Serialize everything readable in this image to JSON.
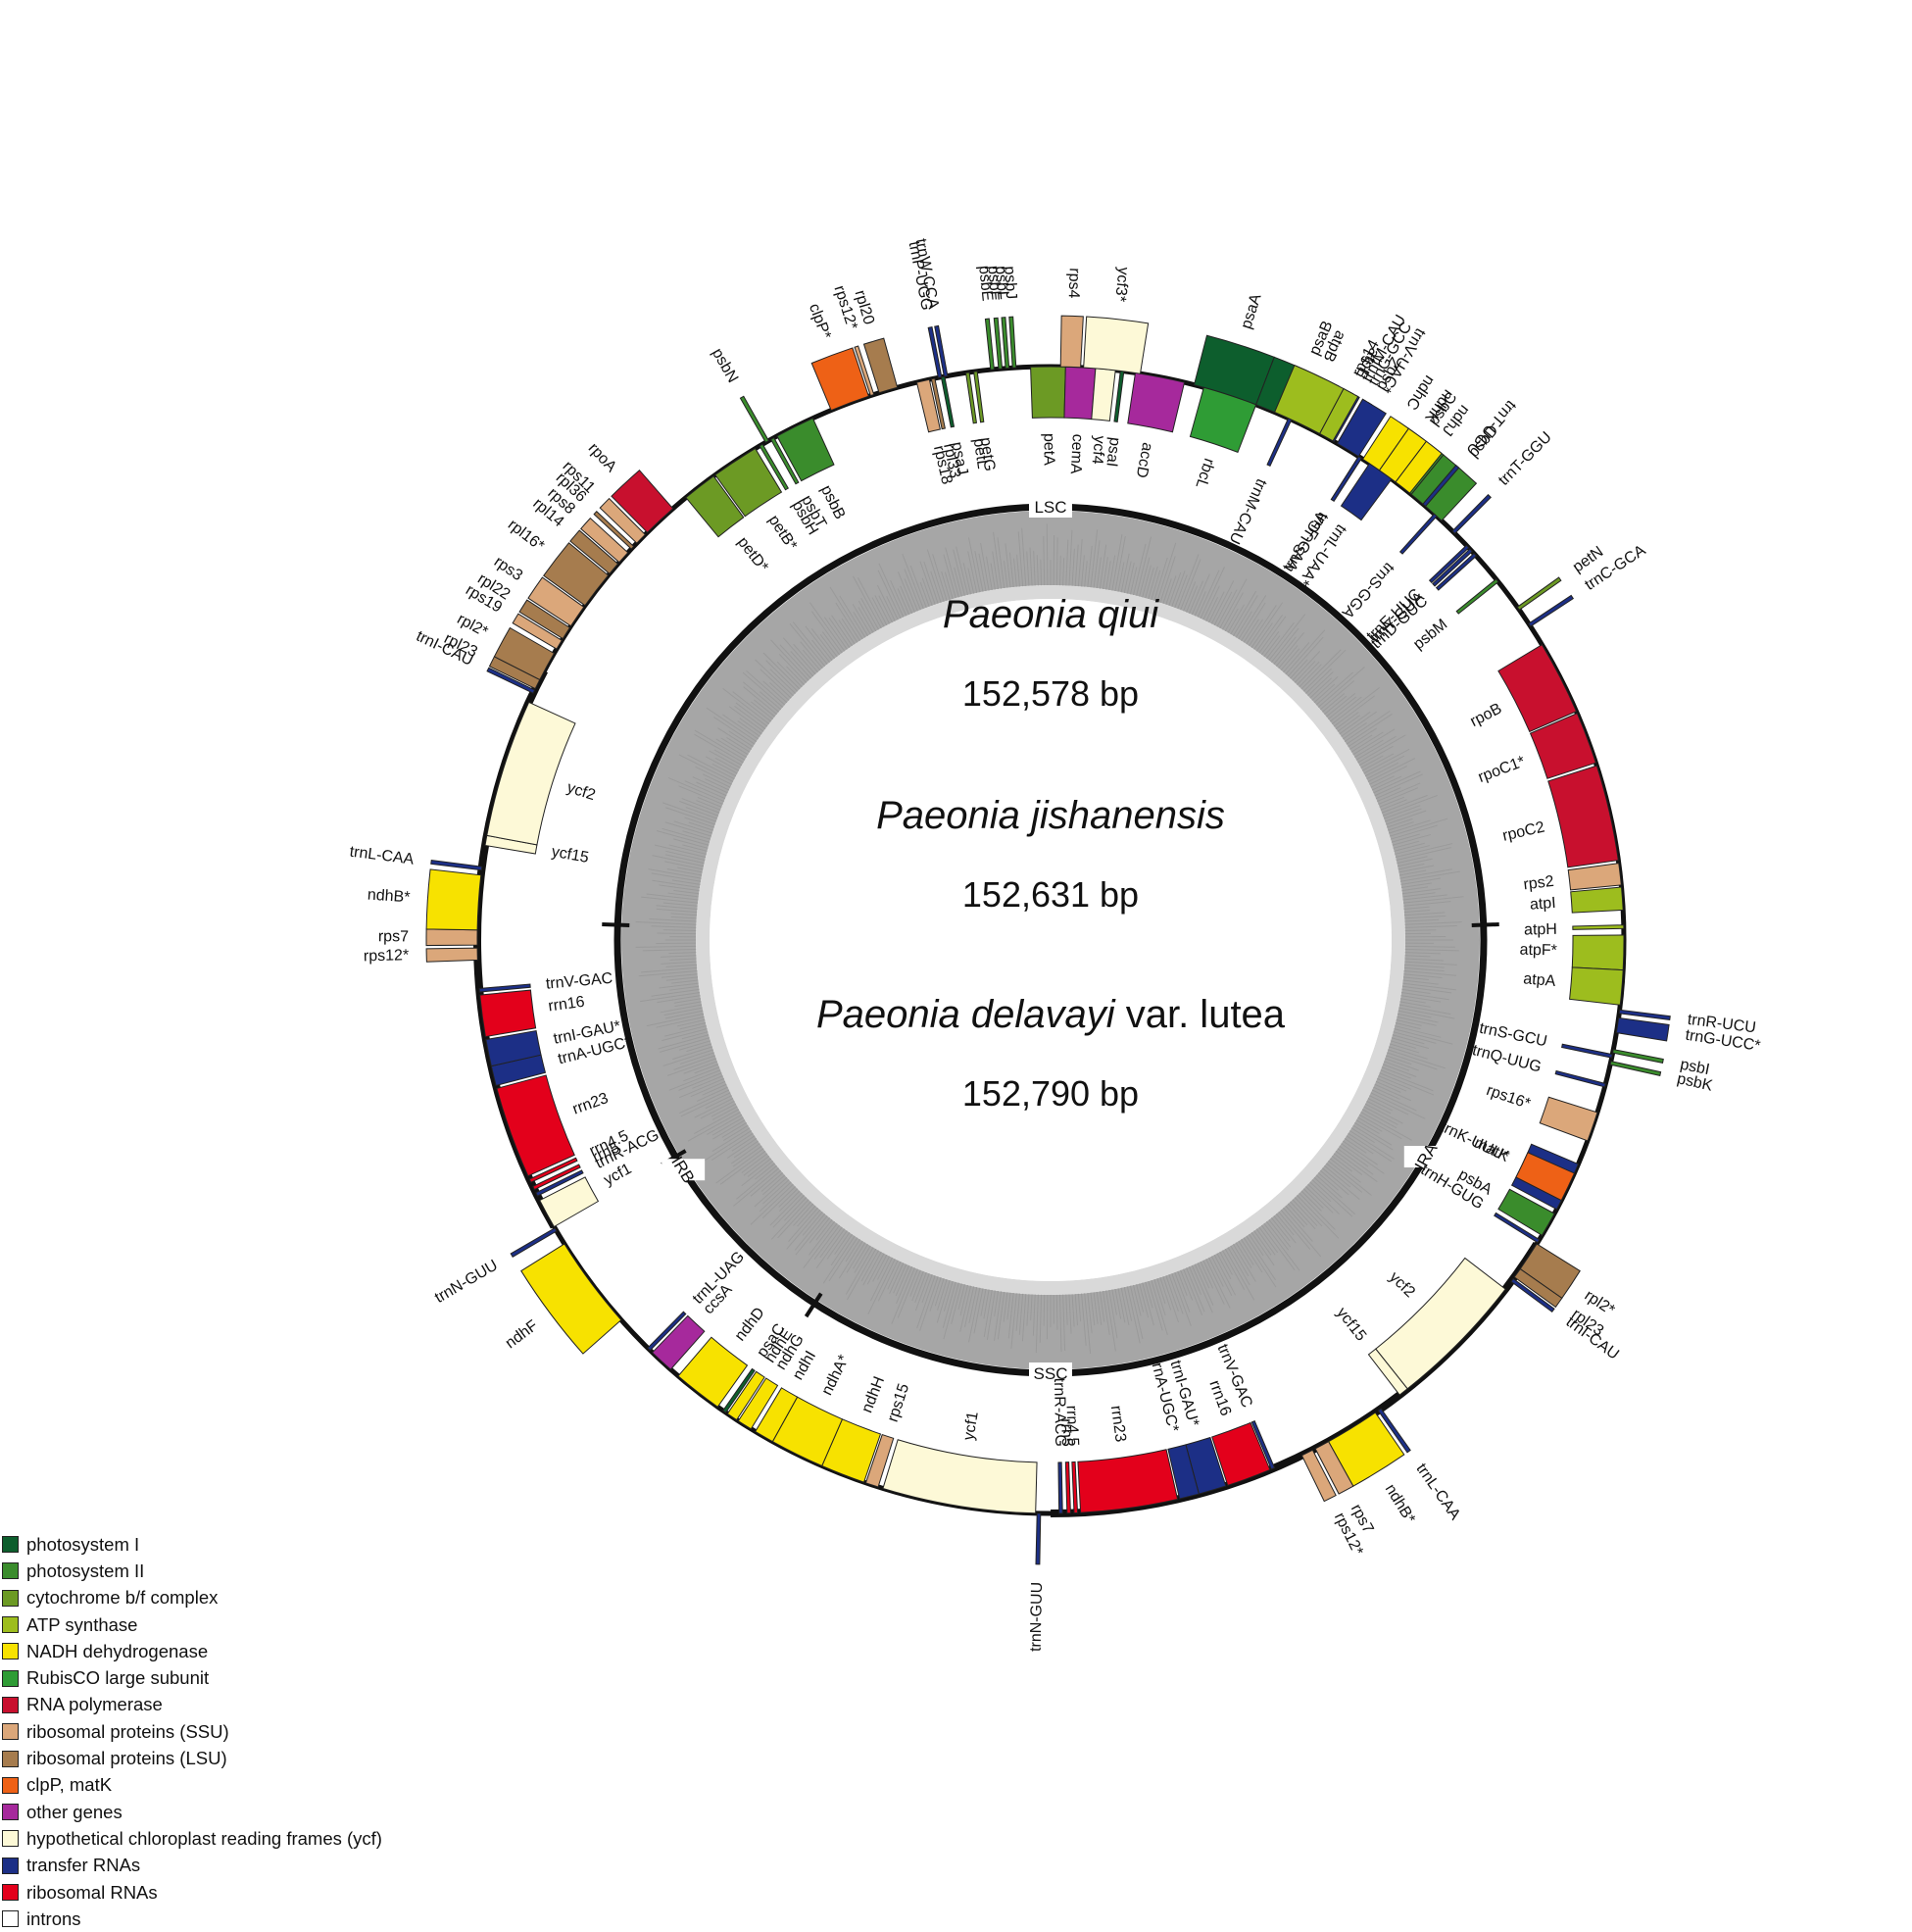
{
  "title": {
    "species": [
      {
        "name": "Paeonia qiui",
        "size": "152,578 bp"
      },
      {
        "name": "Paeonia jishanensis",
        "size": "152,631 bp"
      },
      {
        "name_italic": "Paeonia delavayi",
        "name_plain": " var. lutea",
        "size": "152,790 bp"
      }
    ]
  },
  "regions": [
    "LSC",
    "IRA",
    "SSC",
    "IRB"
  ],
  "legend": [
    {
      "label": "photosystem I",
      "color": "#0d5e2d"
    },
    {
      "label": "photosystem II",
      "color": "#3a8c2c"
    },
    {
      "label": "cytochrome b/f complex",
      "color": "#6c9a24"
    },
    {
      "label": "ATP synthase",
      "color": "#9dbd1e"
    },
    {
      "label": "NADH dehydrogenase",
      "color": "#f7e200"
    },
    {
      "label": "RubisCO large subunit",
      "color": "#2f9c35"
    },
    {
      "label": "RNA polymerase",
      "color": "#c8102e"
    },
    {
      "label": "ribosomal proteins (SSU)",
      "color": "#dba77a"
    },
    {
      "label": "ribosomal proteins (LSU)",
      "color": "#a67c4e"
    },
    {
      "label": "clpP, matK",
      "color": "#ee6116"
    },
    {
      "label": "other genes",
      "color": "#a6299c"
    },
    {
      "label": "hypothetical chloroplast reading frames (ycf)",
      "color": "#fdf9d7"
    },
    {
      "label": "transfer RNAs",
      "color": "#1c2f86"
    },
    {
      "label": "ribosomal RNAs",
      "color": "#e3001b"
    },
    {
      "label": "introns",
      "color": "#ffffff"
    }
  ],
  "genes": [
    {
      "name": "psaA",
      "cat": 0,
      "out": true,
      "a1": 14.5,
      "a2": 21.0
    },
    {
      "name": "psaB",
      "cat": 0,
      "out": true,
      "a1": 21.0,
      "a2": 27.5
    },
    {
      "name": "rps14",
      "cat": 7,
      "out": true,
      "a1": 28.0,
      "a2": 29.0
    },
    {
      "name": "trnfM-CAU",
      "cat": 12,
      "out": true,
      "a1": 29.3,
      "a2": 29.6
    },
    {
      "name": "trnS-UGA",
      "cat": 12,
      "out": false,
      "a1": 32.5,
      "a2": 32.8
    },
    {
      "name": "trnG-GCC",
      "cat": 12,
      "out": true,
      "a1": 30.0,
      "a2": 30.3
    },
    {
      "name": "psbZ",
      "cat": 1,
      "out": true,
      "a1": 30.6,
      "a2": 31.2
    },
    {
      "name": "psbC",
      "cat": 1,
      "out": true,
      "a1": 34.0,
      "a2": 39.0
    },
    {
      "name": "psbD",
      "cat": 1,
      "out": true,
      "a1": 39.0,
      "a2": 43.0
    },
    {
      "name": "trnT-GGU",
      "cat": 12,
      "out": true,
      "a1": 44.5,
      "a2": 44.8
    },
    {
      "name": "trnE-UUC",
      "cat": 12,
      "out": false,
      "a1": 46.5,
      "a2": 46.8
    },
    {
      "name": "trnY-GUA",
      "cat": 12,
      "out": false,
      "a1": 47.0,
      "a2": 47.3
    },
    {
      "name": "trnD-GUC",
      "cat": 12,
      "out": false,
      "a1": 47.6,
      "a2": 47.9
    },
    {
      "name": "psbM",
      "cat": 1,
      "out": false,
      "a1": 51.0,
      "a2": 51.5
    },
    {
      "name": "petN",
      "cat": 2,
      "out": true,
      "a1": 54.5,
      "a2": 55.0
    },
    {
      "name": "trnC-GCA",
      "cat": 12,
      "out": true,
      "a1": 56.5,
      "a2": 56.8
    },
    {
      "name": "rpoB",
      "cat": 6,
      "out": false,
      "a1": 59.0,
      "a2": 66.5
    },
    {
      "name": "rpoC1*",
      "cat": 6,
      "out": false,
      "a1": 66.7,
      "a2": 72.0
    },
    {
      "name": "rpoC2",
      "cat": 6,
      "out": false,
      "a1": 72.3,
      "a2": 82.0
    },
    {
      "name": "rps2",
      "cat": 7,
      "out": false,
      "a1": 82.3,
      "a2": 84.5
    },
    {
      "name": "atpI",
      "cat": 3,
      "out": false,
      "a1": 84.7,
      "a2": 87.0
    },
    {
      "name": "atpH",
      "cat": 3,
      "out": false,
      "a1": 88.5,
      "a2": 89.2
    },
    {
      "name": "atpF*",
      "cat": 3,
      "out": false,
      "a1": 89.5,
      "a2": 93.0
    },
    {
      "name": "atpA",
      "cat": 3,
      "out": false,
      "a1": 93.0,
      "a2": 96.5
    },
    {
      "name": "trnR-UCU",
      "cat": 12,
      "out": true,
      "a1": 97.0,
      "a2": 97.3
    },
    {
      "name": "trnG-UCC*",
      "cat": 12,
      "out": true,
      "a1": 97.8,
      "a2": 99.3
    },
    {
      "name": "trnS-GCU",
      "cat": 12,
      "out": false,
      "a1": 101.5,
      "a2": 101.8
    },
    {
      "name": "psbI",
      "cat": 1,
      "out": true,
      "a1": 101.0,
      "a2": 101.4
    },
    {
      "name": "psbK",
      "cat": 1,
      "out": true,
      "a1": 102.2,
      "a2": 102.8
    },
    {
      "name": "trnQ-UUG",
      "cat": 12,
      "out": false,
      "a1": 104.5,
      "a2": 104.8
    },
    {
      "name": "rps16*",
      "cat": 7,
      "out": false,
      "a1": 107.5,
      "a2": 110.5
    },
    {
      "name": "trnK-UUU*",
      "cat": 12,
      "out": false,
      "a1": 113.0,
      "a2": 118.0
    },
    {
      "name": "matK",
      "cat": 9,
      "out": false,
      "a1": 114.0,
      "a2": 117.0
    },
    {
      "name": "psbA",
      "cat": 1,
      "out": false,
      "a1": 118.5,
      "a2": 121.0
    },
    {
      "name": "trnH-GUG",
      "cat": 12,
      "out": false,
      "a1": 121.5,
      "a2": 121.8
    },
    {
      "name": "rpl2*",
      "cat": 8,
      "out": true,
      "a1": 122.0,
      "a2": 125.0
    },
    {
      "name": "rpl23",
      "cat": 8,
      "out": true,
      "a1": 125.0,
      "a2": 126.0
    },
    {
      "name": "trnI-CAU",
      "cat": 12,
      "out": true,
      "a1": 126.2,
      "a2": 126.5
    },
    {
      "name": "ycf2",
      "cat": 11,
      "out": false,
      "a1": 127.5,
      "a2": 141.5
    },
    {
      "name": "ycf15",
      "cat": 11,
      "out": false,
      "a1": 141.5,
      "a2": 142.5
    },
    {
      "name": "trnL-CAA",
      "cat": 12,
      "out": true,
      "a1": 144.8,
      "a2": 145.1
    },
    {
      "name": "ndhB*",
      "cat": 4,
      "out": true,
      "a1": 145.5,
      "a2": 151.0
    },
    {
      "name": "rps7",
      "cat": 7,
      "out": true,
      "a1": 151.0,
      "a2": 152.5
    },
    {
      "name": "rps12*",
      "cat": 7,
      "out": true,
      "a1": 152.8,
      "a2": 154.0
    },
    {
      "name": "trnV-GAC",
      "cat": 12,
      "out": false,
      "a1": 157.0,
      "a2": 157.3
    },
    {
      "name": "rrn16",
      "cat": 13,
      "out": false,
      "a1": 157.5,
      "a2": 162.0
    },
    {
      "name": "trnI-GAU*",
      "cat": 12,
      "out": false,
      "a1": 162.2,
      "a2": 165.0
    },
    {
      "name": "trnA-UGC*",
      "cat": 12,
      "out": false,
      "a1": 165.0,
      "a2": 167.0
    },
    {
      "name": "rrn23",
      "cat": 13,
      "out": false,
      "a1": 167.2,
      "a2": 177.0
    },
    {
      "name": "rrn4.5",
      "cat": 13,
      "out": false,
      "a1": 177.3,
      "a2": 177.7
    },
    {
      "name": "rrn5",
      "cat": 13,
      "out": false,
      "a1": 178.0,
      "a2": 178.4
    },
    {
      "name": "trnR-ACG",
      "cat": 12,
      "out": false,
      "a1": 178.8,
      "a2": 179.1
    },
    {
      "name": "trnN-GUU",
      "cat": 12,
      "out": true,
      "a1": 181.0,
      "a2": 181.3
    },
    {
      "name": "ycf1",
      "cat": 11,
      "out": false,
      "a1": 181.5,
      "a2": 197.0
    },
    {
      "name": "rps15",
      "cat": 7,
      "out": false,
      "a1": 197.5,
      "a2": 198.8
    },
    {
      "name": "ndhH",
      "cat": 4,
      "out": false,
      "a1": 199.0,
      "a2": 203.5
    },
    {
      "name": "ndhA*",
      "cat": 4,
      "out": false,
      "a1": 203.5,
      "a2": 209.0
    },
    {
      "name": "ndhI",
      "cat": 4,
      "out": false,
      "a1": 209.0,
      "a2": 211.0
    },
    {
      "name": "ndhG",
      "cat": 4,
      "out": false,
      "a1": 211.5,
      "a2": 213.0
    },
    {
      "name": "ndhE",
      "cat": 4,
      "out": false,
      "a1": 213.2,
      "a2": 214.3
    },
    {
      "name": "psaC",
      "cat": 0,
      "out": false,
      "a1": 214.5,
      "a2": 215.2
    },
    {
      "name": "ndhD",
      "cat": 4,
      "out": false,
      "a1": 215.5,
      "a2": 220.5
    },
    {
      "name": "ccsA",
      "cat": 10,
      "out": false,
      "a1": 221.5,
      "a2": 224.0
    },
    {
      "name": "trnL-UAG",
      "cat": 12,
      "out": false,
      "a1": 224.3,
      "a2": 224.6
    },
    {
      "name": "ndhF",
      "cat": 4,
      "out": true,
      "a1": 228.5,
      "a2": 238.0
    },
    {
      "name": "trnN-GUU",
      "cat": 12,
      "out": true,
      "a1": 239.5,
      "a2": 239.8
    },
    {
      "name": "ycf1",
      "cat": 11,
      "out": false,
      "a1": 240.0,
      "a2": 243.0
    },
    {
      "name": "trnR-ACG",
      "cat": 12,
      "out": false,
      "a1": 243.5,
      "a2": 243.8
    },
    {
      "name": "rrn5",
      "cat": 13,
      "out": false,
      "a1": 244.2,
      "a2": 244.6
    },
    {
      "name": "rrn4.5",
      "cat": 13,
      "out": false,
      "a1": 245.0,
      "a2": 245.4
    },
    {
      "name": "rrn23",
      "cat": 13,
      "out": false,
      "a1": 245.7,
      "a2": 255.0
    },
    {
      "name": "trnA-UGC*",
      "cat": 12,
      "out": false,
      "a1": 255.3,
      "a2": 257.3
    },
    {
      "name": "trnI-GAU*",
      "cat": 12,
      "out": false,
      "a1": 257.3,
      "a2": 260.0
    },
    {
      "name": "rrn16",
      "cat": 13,
      "out": false,
      "a1": 260.3,
      "a2": 264.5
    },
    {
      "name": "trnV-GAC",
      "cat": 12,
      "out": false,
      "a1": 264.8,
      "a2": 265.1
    },
    {
      "name": "rps12*",
      "cat": 7,
      "out": true,
      "a1": 268.0,
      "a2": 269.2
    },
    {
      "name": "rps7",
      "cat": 7,
      "out": true,
      "a1": 269.5,
      "a2": 271.0
    },
    {
      "name": "ndhB*",
      "cat": 4,
      "out": true,
      "a1": 271.0,
      "a2": 276.5
    },
    {
      "name": "trnL-CAA",
      "cat": 12,
      "out": true,
      "a1": 277.0,
      "a2": 277.3
    },
    {
      "name": "ycf15",
      "cat": 11,
      "out": false,
      "a1": 279.5,
      "a2": 280.5
    },
    {
      "name": "ycf2",
      "cat": 11,
      "out": false,
      "a1": 280.5,
      "a2": 294.5
    },
    {
      "name": "trnI-CAU",
      "cat": 12,
      "out": true,
      "a1": 295.5,
      "a2": 295.8
    },
    {
      "name": "rpl23",
      "cat": 8,
      "out": true,
      "a1": 296.0,
      "a2": 297.0
    },
    {
      "name": "rpl2*",
      "cat": 8,
      "out": true,
      "a1": 297.0,
      "a2": 300.0
    },
    {
      "name": "rps19",
      "cat": 7,
      "out": true,
      "a1": 300.5,
      "a2": 301.5
    },
    {
      "name": "rpl22",
      "cat": 8,
      "out": true,
      "a1": 301.7,
      "a2": 303.0
    },
    {
      "name": "rps3",
      "cat": 7,
      "out": true,
      "a1": 303.2,
      "a2": 305.5
    },
    {
      "name": "rpl16*",
      "cat": 8,
      "out": true,
      "a1": 305.7,
      "a2": 309.5
    },
    {
      "name": "rpl14",
      "cat": 8,
      "out": true,
      "a1": 309.7,
      "a2": 311.0
    },
    {
      "name": "rps8",
      "cat": 7,
      "out": true,
      "a1": 311.2,
      "a2": 312.5
    },
    {
      "name": "rpl36",
      "cat": 8,
      "out": true,
      "a1": 313.0,
      "a2": 313.6
    },
    {
      "name": "rps11",
      "cat": 7,
      "out": true,
      "a1": 313.8,
      "a2": 315.0
    },
    {
      "name": "rpoA",
      "cat": 6,
      "out": true,
      "a1": 315.3,
      "a2": 318.8
    },
    {
      "name": "petD*",
      "cat": 2,
      "out": false,
      "a1": 320.5,
      "a2": 324.0
    },
    {
      "name": "petB*",
      "cat": 2,
      "out": false,
      "a1": 324.2,
      "a2": 329.0
    },
    {
      "name": "psbH",
      "cat": 1,
      "out": false,
      "a1": 329.5,
      "a2": 330.0
    },
    {
      "name": "psbN",
      "cat": 1,
      "out": true,
      "a1": 330.2,
      "a2": 330.6
    },
    {
      "name": "psbT",
      "cat": 1,
      "out": false,
      "a1": 330.8,
      "a2": 331.2
    },
    {
      "name": "psbB",
      "cat": 1,
      "out": false,
      "a1": 331.5,
      "a2": 335.5
    },
    {
      "name": "clpP*",
      "cat": 9,
      "out": true,
      "a1": 337.5,
      "a2": 341.5
    },
    {
      "name": "rps12*",
      "cat": 7,
      "out": true,
      "a1": 341.7,
      "a2": 342.3
    },
    {
      "name": "rpl20",
      "cat": 8,
      "out": true,
      "a1": 342.6,
      "a2": 344.5
    },
    {
      "name": "rps18",
      "cat": 7,
      "out": false,
      "a1": 346.5,
      "a2": 347.8
    },
    {
      "name": "rpl33",
      "cat": 8,
      "out": false,
      "a1": 348.0,
      "a2": 348.6
    },
    {
      "name": "psaJ",
      "cat": 0,
      "out": false,
      "a1": 349.0,
      "a2": 349.5
    },
    {
      "name": "trnP-UGG",
      "cat": 12,
      "out": true,
      "a1": 348.7,
      "a2": 349.0
    },
    {
      "name": "trnW-CCA",
      "cat": 12,
      "out": true,
      "a1": 349.3,
      "a2": 349.6
    },
    {
      "name": "petL",
      "cat": 2,
      "out": false,
      "a1": 351.5,
      "a2": 352.0
    },
    {
      "name": "petG",
      "cat": 2,
      "out": false,
      "a1": 352.3,
      "a2": 352.8
    },
    {
      "name": "psbE",
      "cat": 1,
      "out": true,
      "a1": 354.0,
      "a2": 354.6
    },
    {
      "name": "psbF",
      "cat": 1,
      "out": true,
      "a1": 354.8,
      "a2": 355.3
    },
    {
      "name": "psbL",
      "cat": 1,
      "out": true,
      "a1": 355.5,
      "a2": 355.9
    },
    {
      "name": "psbJ",
      "cat": 1,
      "out": true,
      "a1": 356.2,
      "a2": 356.7
    },
    {
      "name": "petA",
      "cat": 2,
      "out": false,
      "a1": 358.0,
      "a2": 361.5
    },
    {
      "name": "cemA",
      "cat": 10,
      "out": false,
      "a1": 361.5,
      "a2": 364.5
    },
    {
      "name": "ycf4",
      "cat": 11,
      "out": false,
      "a1": 364.5,
      "a2": 366.5
    },
    {
      "name": "psaI",
      "cat": 0,
      "out": false,
      "a1": 367.0,
      "a2": 367.5
    },
    {
      "name": "accD",
      "cat": 10,
      "out": false,
      "a1": 368.5,
      "a2": 373.5
    },
    {
      "name": "rbcL",
      "cat": 5,
      "out": false,
      "a1": 375.5,
      "a2": 381.0
    },
    {
      "name": "trnM-CAU",
      "cat": 12,
      "out": false,
      "a1": 384.5,
      "a2": 384.8
    },
    {
      "name": "atpB",
      "cat": 3,
      "out": true,
      "a1": 383.0,
      "a2": 388.0
    },
    {
      "name": "atpE",
      "cat": 3,
      "out": true,
      "a1": 388.0,
      "a2": 389.5
    },
    {
      "name": "trnV-UAC*",
      "cat": 12,
      "out": true,
      "a1": 390.0,
      "a2": 392.5
    },
    {
      "name": "trnL-UAA*",
      "cat": 12,
      "out": false,
      "a1": 393.8,
      "a2": 396.5
    },
    {
      "name": "trnF-GAA",
      "cat": 12,
      "out": false,
      "a1": 392.5,
      "a2": 392.8
    },
    {
      "name": "ndhC",
      "cat": 4,
      "out": true,
      "a1": 393.0,
      "a2": 395.0
    },
    {
      "name": "ndhK",
      "cat": 4,
      "out": true,
      "a1": 395.0,
      "a2": 397.0
    },
    {
      "name": "ndhJ",
      "cat": 4,
      "out": true,
      "a1": 397.0,
      "a2": 398.8
    },
    {
      "name": "trnT-UGU",
      "cat": 12,
      "out": true,
      "a1": 400.5,
      "a2": 400.8
    },
    {
      "name": "trnS-GGA",
      "cat": 12,
      "out": false,
      "a1": 402.0,
      "a2": 402.3
    },
    {
      "name": "rps4",
      "cat": 7,
      "out": true,
      "a1": 361.0,
      "a2": 363.0
    },
    {
      "name": "ycf3*",
      "cat": 11,
      "out": true,
      "a1": 363.3,
      "a2": 369.0
    }
  ]
}
